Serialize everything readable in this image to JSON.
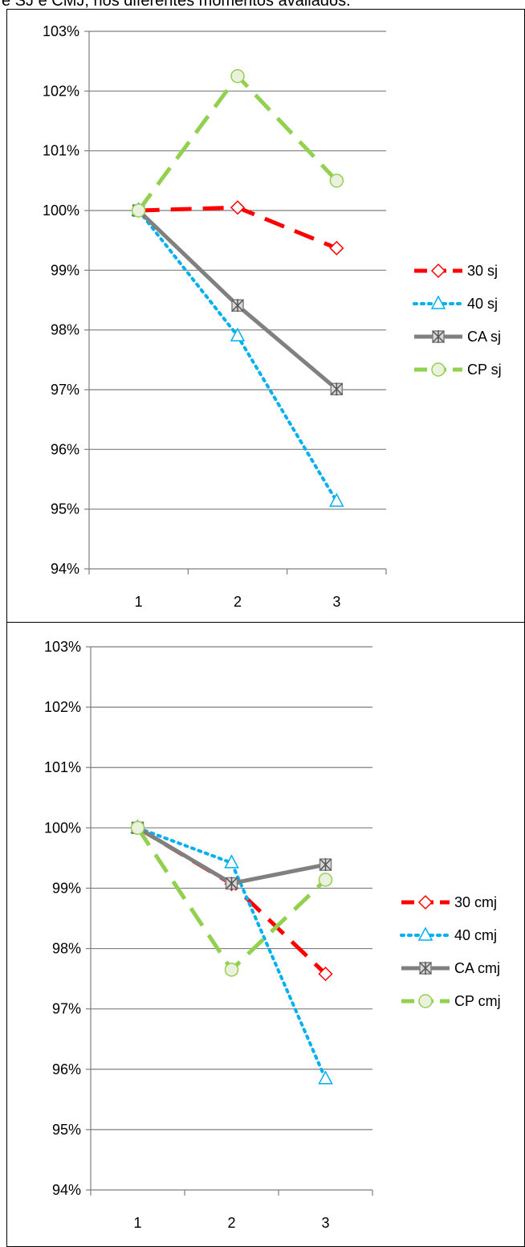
{
  "caption": "e SJ e CMJ, nos diferentes momentos avaliados.",
  "chart_data": [
    {
      "type": "line",
      "categories": [
        "1",
        "2",
        "3"
      ],
      "ylim": [
        0.94,
        1.03
      ],
      "yticks": [
        "94%",
        "95%",
        "96%",
        "97%",
        "98%",
        "99%",
        "100%",
        "101%",
        "102%",
        "103%"
      ],
      "grid": true,
      "legend_position": "right",
      "series": [
        {
          "name": "30 sj",
          "values": [
            1.0,
            1.0005,
            0.9937
          ],
          "color": "#ff0000",
          "dash": "long-dash",
          "marker": "diamond"
        },
        {
          "name": "40 sj",
          "values": [
            1.0,
            0.979,
            0.9513
          ],
          "color": "#00b0f0",
          "dash": "dotted",
          "marker": "triangle"
        },
        {
          "name": "CA sj",
          "values": [
            1.0,
            0.9841,
            0.9701
          ],
          "color": "#808080",
          "dash": "solid",
          "marker": "star"
        },
        {
          "name": "CP sj",
          "values": [
            1.0,
            1.0225,
            1.005
          ],
          "color": "#92d050",
          "dash": "long-dash",
          "marker": "circle"
        }
      ]
    },
    {
      "type": "line",
      "categories": [
        "1",
        "2",
        "3"
      ],
      "ylim": [
        0.94,
        1.03
      ],
      "yticks": [
        "94%",
        "95%",
        "96%",
        "97%",
        "98%",
        "99%",
        "100%",
        "101%",
        "102%",
        "103%"
      ],
      "grid": true,
      "legend_position": "right",
      "series": [
        {
          "name": "30 cmj",
          "values": [
            1.0,
            0.9907,
            0.9758
          ],
          "color": "#ff0000",
          "dash": "long-dash",
          "marker": "diamond"
        },
        {
          "name": "40 cmj",
          "values": [
            1.0,
            0.9942,
            0.9584
          ],
          "color": "#00b0f0",
          "dash": "dotted",
          "marker": "triangle"
        },
        {
          "name": "CA cmj",
          "values": [
            1.0,
            0.9908,
            0.9939
          ],
          "color": "#808080",
          "dash": "solid",
          "marker": "star"
        },
        {
          "name": "CP cmj",
          "values": [
            1.0,
            0.9765,
            0.9914
          ],
          "color": "#92d050",
          "dash": "long-dash",
          "marker": "circle"
        }
      ]
    }
  ]
}
